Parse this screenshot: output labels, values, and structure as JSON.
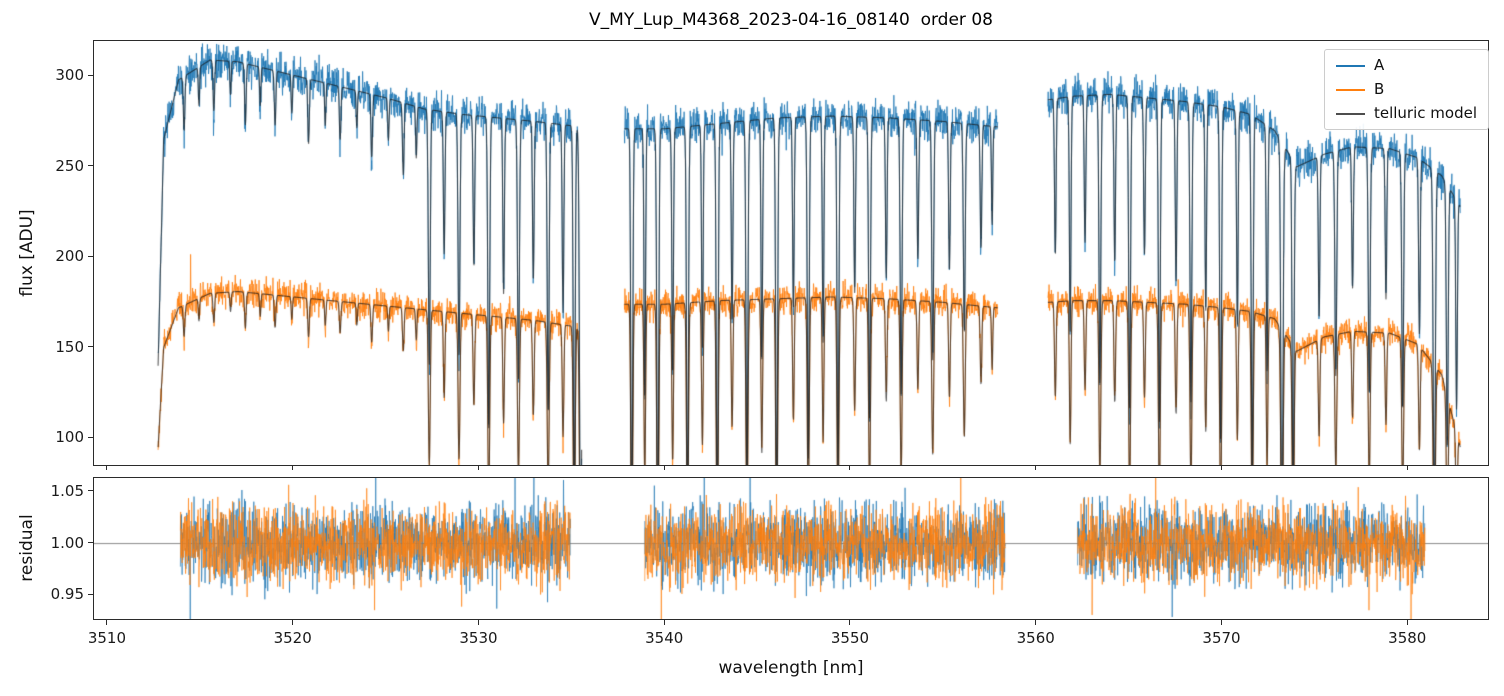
{
  "chart_data": {
    "type": "line",
    "title": "V_MY_Lup_M4368_2023-04-16_08140  order 08",
    "xlabel": "wavelength [nm]",
    "xlim": [
      3509.25,
      3584.4
    ],
    "xticks": [
      3510,
      3520,
      3530,
      3540,
      3550,
      3560,
      3570,
      3580
    ],
    "xtick_labels": [
      "3510",
      "3520",
      "3530",
      "3540",
      "3550",
      "3560",
      "3570",
      "3580"
    ],
    "grid": false,
    "legend_position": "upper right",
    "panels": [
      {
        "name": "flux",
        "ylabel": "flux [ADU]",
        "ylim": [
          84,
          319.5
        ],
        "yticks": [
          100,
          150,
          200,
          250,
          300
        ],
        "ytick_labels": [
          "100",
          "150",
          "200",
          "250",
          "300"
        ]
      },
      {
        "name": "residual",
        "ylabel": "residual",
        "ylim": [
          0.925,
          1.0635
        ],
        "yticks": [
          0.95,
          1.0,
          1.05
        ],
        "ytick_labels": [
          "0.95",
          "1.00",
          "1.05"
        ],
        "reference_line": 1.0
      }
    ],
    "legend": [
      {
        "label": "A",
        "color": "#1f77b4"
      },
      {
        "label": "B",
        "color": "#ff7f0e"
      },
      {
        "label": "telluric model",
        "color": "#4d4d4d"
      }
    ],
    "series_colors": {
      "A": "#1f77b4",
      "B": "#ff7f0e",
      "telluric_model": "#1a1a1a",
      "reference": "#888888"
    },
    "flux_segments": [
      [
        3512.7,
        3535.5
      ],
      [
        3537.8,
        3557.9
      ],
      [
        3560.6,
        3582.8
      ]
    ],
    "residual_segments": [
      [
        3513.9,
        3534.9
      ],
      [
        3538.9,
        3558.3
      ],
      [
        3562.2,
        3580.9
      ]
    ],
    "continuum_A": [
      [
        3512.7,
        140
      ],
      [
        3513.0,
        265
      ],
      [
        3513.8,
        298
      ],
      [
        3515.5,
        309
      ],
      [
        3517,
        308
      ],
      [
        3519,
        303
      ],
      [
        3521,
        298
      ],
      [
        3523,
        293
      ],
      [
        3525,
        288
      ],
      [
        3527,
        282
      ],
      [
        3529,
        279
      ],
      [
        3531,
        277
      ],
      [
        3533,
        275
      ],
      [
        3535.5,
        272
      ],
      [
        3537.8,
        271
      ],
      [
        3540,
        271
      ],
      [
        3543,
        274
      ],
      [
        3546,
        277
      ],
      [
        3549,
        278
      ],
      [
        3552,
        277
      ],
      [
        3555,
        275
      ],
      [
        3557.9,
        272
      ],
      [
        3560.6,
        287
      ],
      [
        3562,
        289
      ],
      [
        3564,
        290
      ],
      [
        3566,
        288
      ],
      [
        3568,
        286
      ],
      [
        3570,
        283
      ],
      [
        3571.5,
        279
      ],
      [
        3572.8,
        270
      ],
      [
        3574,
        250
      ],
      [
        3575.5,
        257
      ],
      [
        3577,
        261
      ],
      [
        3579,
        260
      ],
      [
        3580.5,
        255
      ],
      [
        3581.8,
        245
      ],
      [
        3582.8,
        228
      ]
    ],
    "continuum_B": [
      [
        3512.7,
        95
      ],
      [
        3513.0,
        150
      ],
      [
        3513.8,
        172
      ],
      [
        3515.5,
        180
      ],
      [
        3517,
        181
      ],
      [
        3519,
        179
      ],
      [
        3521,
        177
      ],
      [
        3523,
        175
      ],
      [
        3525,
        173
      ],
      [
        3527,
        171
      ],
      [
        3529,
        169
      ],
      [
        3531,
        167
      ],
      [
        3533,
        165
      ],
      [
        3535.5,
        161
      ],
      [
        3537.8,
        174
      ],
      [
        3540,
        174
      ],
      [
        3543,
        176
      ],
      [
        3546,
        177
      ],
      [
        3549,
        178
      ],
      [
        3552,
        177
      ],
      [
        3555,
        175
      ],
      [
        3557.9,
        172
      ],
      [
        3560.6,
        175
      ],
      [
        3562,
        176
      ],
      [
        3564,
        176
      ],
      [
        3566,
        175
      ],
      [
        3568,
        174
      ],
      [
        3570,
        172
      ],
      [
        3571.5,
        170
      ],
      [
        3572.8,
        166
      ],
      [
        3574,
        148
      ],
      [
        3575.5,
        156
      ],
      [
        3577,
        159
      ],
      [
        3579,
        158
      ],
      [
        3580.5,
        152
      ],
      [
        3581.8,
        135
      ],
      [
        3582.8,
        95
      ]
    ],
    "telluric_lines": [
      [
        3514.1,
        0.06,
        0.1
      ],
      [
        3514.9,
        0.05,
        0.07
      ],
      [
        3515.7,
        0.06,
        0.09
      ],
      [
        3516.6,
        0.05,
        0.06
      ],
      [
        3517.4,
        0.06,
        0.11
      ],
      [
        3518.2,
        0.05,
        0.07
      ],
      [
        3519.0,
        0.06,
        0.1
      ],
      [
        3519.9,
        0.05,
        0.07
      ],
      [
        3520.8,
        0.06,
        0.12
      ],
      [
        3521.7,
        0.05,
        0.08
      ],
      [
        3522.5,
        0.06,
        0.1
      ],
      [
        3523.4,
        0.05,
        0.07
      ],
      [
        3524.2,
        0.06,
        0.12
      ],
      [
        3525.1,
        0.05,
        0.08
      ],
      [
        3525.9,
        0.06,
        0.14
      ],
      [
        3526.6,
        0.05,
        0.1
      ],
      [
        3527.3,
        0.07,
        0.5
      ],
      [
        3528.1,
        0.06,
        0.28
      ],
      [
        3528.9,
        0.07,
        0.48
      ],
      [
        3529.7,
        0.06,
        0.3
      ],
      [
        3530.5,
        0.07,
        0.62
      ],
      [
        3531.3,
        0.06,
        0.35
      ],
      [
        3532.1,
        0.07,
        0.52
      ],
      [
        3532.9,
        0.06,
        0.32
      ],
      [
        3533.7,
        0.07,
        0.58
      ],
      [
        3534.5,
        0.06,
        0.38
      ],
      [
        3535.1,
        0.07,
        0.8
      ],
      [
        3535.45,
        0.08,
        0.97
      ],
      [
        3538.2,
        0.07,
        0.85
      ],
      [
        3538.9,
        0.06,
        0.55
      ],
      [
        3539.6,
        0.07,
        0.88
      ],
      [
        3540.4,
        0.06,
        0.5
      ],
      [
        3541.2,
        0.07,
        0.8
      ],
      [
        3542.0,
        0.06,
        0.45
      ],
      [
        3542.8,
        0.07,
        0.83
      ],
      [
        3543.6,
        0.06,
        0.4
      ],
      [
        3544.4,
        0.07,
        0.75
      ],
      [
        3545.2,
        0.06,
        0.48
      ],
      [
        3546.0,
        0.07,
        0.8
      ],
      [
        3546.9,
        0.06,
        0.38
      ],
      [
        3547.7,
        0.07,
        0.68
      ],
      [
        3548.5,
        0.06,
        0.45
      ],
      [
        3549.3,
        0.07,
        0.72
      ],
      [
        3550.2,
        0.06,
        0.35
      ],
      [
        3551.0,
        0.07,
        0.6
      ],
      [
        3551.9,
        0.06,
        0.32
      ],
      [
        3552.7,
        0.07,
        0.55
      ],
      [
        3553.6,
        0.06,
        0.28
      ],
      [
        3554.4,
        0.07,
        0.48
      ],
      [
        3555.3,
        0.06,
        0.3
      ],
      [
        3556.1,
        0.07,
        0.42
      ],
      [
        3557.0,
        0.06,
        0.25
      ],
      [
        3557.6,
        0.05,
        0.2
      ],
      [
        3561.0,
        0.06,
        0.3
      ],
      [
        3561.8,
        0.06,
        0.45
      ],
      [
        3562.6,
        0.06,
        0.28
      ],
      [
        3563.4,
        0.07,
        0.55
      ],
      [
        3564.2,
        0.06,
        0.32
      ],
      [
        3565.0,
        0.07,
        0.6
      ],
      [
        3565.8,
        0.06,
        0.3
      ],
      [
        3566.6,
        0.07,
        0.62
      ],
      [
        3567.5,
        0.06,
        0.35
      ],
      [
        3568.3,
        0.07,
        0.58
      ],
      [
        3569.1,
        0.06,
        0.4
      ],
      [
        3569.9,
        0.07,
        0.65
      ],
      [
        3570.8,
        0.06,
        0.42
      ],
      [
        3571.6,
        0.07,
        0.72
      ],
      [
        3572.4,
        0.06,
        0.5
      ],
      [
        3573.2,
        0.08,
        0.88
      ],
      [
        3573.8,
        0.07,
        0.75
      ],
      [
        3575.2,
        0.06,
        0.35
      ],
      [
        3576.1,
        0.07,
        0.48
      ],
      [
        3577.0,
        0.06,
        0.3
      ],
      [
        3577.9,
        0.07,
        0.52
      ],
      [
        3578.8,
        0.06,
        0.32
      ],
      [
        3579.7,
        0.07,
        0.55
      ],
      [
        3580.6,
        0.06,
        0.38
      ],
      [
        3581.4,
        0.08,
        0.78
      ],
      [
        3582.1,
        0.07,
        0.6
      ],
      [
        3582.6,
        0.06,
        0.5
      ]
    ],
    "noise": {
      "A": 5.0,
      "B": 3.8,
      "residual": 0.018,
      "seed": 20230416
    }
  }
}
